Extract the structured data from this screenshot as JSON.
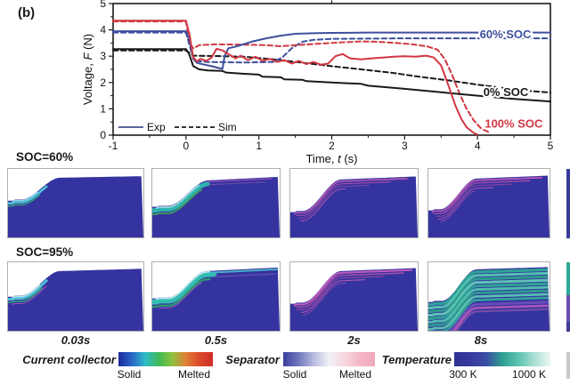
{
  "panel_label": "(b)",
  "chart_data": {
    "type": "line",
    "xlabel": {
      "pre": "Time, ",
      "it": "t",
      "post": " (s)"
    },
    "ylabel": {
      "pre": "Voltage, ",
      "it": "F",
      "post": " (N)"
    },
    "xlim": [
      -1,
      5
    ],
    "ylim": [
      0,
      5
    ],
    "xticks": [
      "-1",
      "0",
      "1",
      "2",
      "3",
      "4",
      "5"
    ],
    "yticks": [
      "0",
      "1",
      "2",
      "3",
      "4",
      "5"
    ],
    "legend": {
      "exp": "Exp",
      "sim": "Sim"
    },
    "annotations": [
      {
        "text": "60% SOC",
        "t": 4.03,
        "v": 3.82,
        "color": "#3d4f9d"
      },
      {
        "text": "0% SOC",
        "t": 4.08,
        "v": 1.62,
        "color": "#1a1a1a"
      },
      {
        "text": "100% SOC",
        "t": 4.1,
        "v": 0.42,
        "color": "#d23742"
      }
    ],
    "series": [
      {
        "name": "Sim 0% SOC",
        "color": "#1a1a1a",
        "dash": true,
        "points": [
          [
            -1,
            3.22
          ],
          [
            0,
            3.22
          ],
          [
            0.1,
            3.02
          ],
          [
            0.5,
            3.0
          ],
          [
            0.8,
            2.98
          ],
          [
            1.2,
            2.88
          ],
          [
            1.6,
            2.75
          ],
          [
            2.0,
            2.62
          ],
          [
            2.4,
            2.5
          ],
          [
            2.8,
            2.38
          ],
          [
            3.2,
            2.22
          ],
          [
            3.6,
            2.08
          ],
          [
            4.0,
            1.92
          ],
          [
            4.4,
            1.78
          ],
          [
            4.7,
            1.68
          ],
          [
            5,
            1.62
          ]
        ]
      },
      {
        "name": "Sim 60% SOC",
        "color": "#3d4f9d",
        "dash": true,
        "points": [
          [
            -1,
            3.9
          ],
          [
            0,
            3.9
          ],
          [
            0.07,
            3.2
          ],
          [
            0.12,
            2.82
          ],
          [
            0.3,
            2.78
          ],
          [
            0.8,
            2.76
          ],
          [
            1.2,
            2.78
          ],
          [
            1.32,
            2.95
          ],
          [
            1.45,
            3.3
          ],
          [
            1.6,
            3.55
          ],
          [
            1.75,
            3.62
          ],
          [
            2.0,
            3.66
          ],
          [
            3.0,
            3.68
          ],
          [
            5,
            3.68
          ]
        ]
      },
      {
        "name": "Sim 100% SOC",
        "color": "#d23742",
        "dash": true,
        "points": [
          [
            -1,
            4.32
          ],
          [
            0,
            4.32
          ],
          [
            0.05,
            3.5
          ],
          [
            0.1,
            3.3
          ],
          [
            0.18,
            3.42
          ],
          [
            0.4,
            3.45
          ],
          [
            0.8,
            3.44
          ],
          [
            1.1,
            3.42
          ],
          [
            1.3,
            3.38
          ],
          [
            1.5,
            3.42
          ],
          [
            1.8,
            3.47
          ],
          [
            2.1,
            3.52
          ],
          [
            2.4,
            3.56
          ],
          [
            2.6,
            3.55
          ],
          [
            2.9,
            3.5
          ],
          [
            3.1,
            3.45
          ],
          [
            3.3,
            3.38
          ],
          [
            3.45,
            3.25
          ],
          [
            3.55,
            2.9
          ],
          [
            3.65,
            2.3
          ],
          [
            3.75,
            1.6
          ],
          [
            3.85,
            1.0
          ],
          [
            3.95,
            0.55
          ],
          [
            4.05,
            0.25
          ],
          [
            4.15,
            0.12
          ]
        ]
      },
      {
        "name": "Exp 0% SOC",
        "color": "#1a1a1a",
        "dash": false,
        "points": [
          [
            -1,
            3.27
          ],
          [
            0,
            3.27
          ],
          [
            0.04,
            3.1
          ],
          [
            0.1,
            2.62
          ],
          [
            0.18,
            2.5
          ],
          [
            0.3,
            2.46
          ],
          [
            0.5,
            2.44
          ],
          [
            0.55,
            2.38
          ],
          [
            0.8,
            2.33
          ],
          [
            1.0,
            2.3
          ],
          [
            1.05,
            2.22
          ],
          [
            1.3,
            2.2
          ],
          [
            1.35,
            2.12
          ],
          [
            1.6,
            2.1
          ],
          [
            1.65,
            2.05
          ],
          [
            2.0,
            2.0
          ],
          [
            2.4,
            1.95
          ],
          [
            2.5,
            1.88
          ],
          [
            3.0,
            1.76
          ],
          [
            3.5,
            1.63
          ],
          [
            4.0,
            1.5
          ],
          [
            4.5,
            1.38
          ],
          [
            5,
            1.28
          ]
        ]
      },
      {
        "name": "Exp 60% SOC",
        "color": "#3d4f9d",
        "dash": false,
        "points": [
          [
            -1,
            3.95
          ],
          [
            0,
            3.95
          ],
          [
            0.05,
            3.6
          ],
          [
            0.1,
            2.9
          ],
          [
            0.15,
            2.75
          ],
          [
            0.25,
            2.68
          ],
          [
            0.35,
            2.62
          ],
          [
            0.45,
            2.55
          ],
          [
            0.5,
            2.52
          ],
          [
            0.53,
            3.0
          ],
          [
            0.58,
            3.3
          ],
          [
            0.7,
            3.38
          ],
          [
            0.9,
            3.55
          ],
          [
            1.1,
            3.68
          ],
          [
            1.3,
            3.78
          ],
          [
            1.5,
            3.85
          ],
          [
            1.8,
            3.88
          ],
          [
            2.5,
            3.9
          ],
          [
            5,
            3.9
          ]
        ]
      },
      {
        "name": "Exp 100% SOC",
        "color": "#d23742",
        "dash": false,
        "points": [
          [
            -1,
            4.35
          ],
          [
            0,
            4.35
          ],
          [
            0.05,
            3.8
          ],
          [
            0.1,
            2.95
          ],
          [
            0.15,
            2.8
          ],
          [
            0.2,
            2.9
          ],
          [
            0.28,
            2.82
          ],
          [
            0.35,
            2.95
          ],
          [
            0.42,
            3.28
          ],
          [
            0.5,
            3.22
          ],
          [
            0.6,
            3.05
          ],
          [
            0.68,
            2.92
          ],
          [
            0.75,
            3.02
          ],
          [
            0.85,
            2.85
          ],
          [
            0.95,
            2.98
          ],
          [
            1.05,
            2.82
          ],
          [
            1.15,
            2.9
          ],
          [
            1.25,
            2.78
          ],
          [
            1.35,
            2.85
          ],
          [
            1.45,
            2.72
          ],
          [
            1.55,
            2.82
          ],
          [
            1.65,
            2.7
          ],
          [
            1.75,
            2.78
          ],
          [
            1.85,
            2.68
          ],
          [
            1.95,
            2.72
          ],
          [
            2.05,
            3.0
          ],
          [
            2.15,
            3.08
          ],
          [
            2.25,
            2.92
          ],
          [
            2.4,
            2.88
          ],
          [
            2.55,
            2.92
          ],
          [
            2.7,
            2.95
          ],
          [
            2.85,
            2.98
          ],
          [
            3.0,
            3.0
          ],
          [
            3.15,
            2.98
          ],
          [
            3.3,
            3.02
          ],
          [
            3.4,
            2.95
          ],
          [
            3.5,
            2.65
          ],
          [
            3.6,
            1.9
          ],
          [
            3.7,
            1.1
          ],
          [
            3.78,
            0.6
          ],
          [
            3.85,
            0.3
          ],
          [
            3.95,
            0.08
          ],
          [
            4.0,
            0.02
          ]
        ]
      }
    ]
  },
  "panels": {
    "rows": [
      {
        "label": "SOC=60%",
        "tiles": [
          {
            "variant": "cyan-small"
          },
          {
            "variant": "cyan-strong"
          },
          {
            "variant": "magenta"
          },
          {
            "variant": "magenta-more"
          }
        ]
      },
      {
        "label": "SOC=95%",
        "tiles": [
          {
            "variant": "cyan-small-2"
          },
          {
            "variant": "cyan-strong-2"
          },
          {
            "variant": "magenta-strong"
          },
          {
            "variant": "teal-layers"
          }
        ]
      }
    ],
    "time_labels": [
      "0.03s",
      "0.5s",
      "2s",
      "8s"
    ]
  },
  "legend_bars": [
    {
      "title": "Current collector",
      "left": "Solid",
      "right": "Melted",
      "stops": [
        "#202a9c",
        "#2a65c8",
        "#2fbcc8",
        "#40b954",
        "#8ec23f",
        "#e08038",
        "#da4a2c",
        "#d02c26"
      ]
    },
    {
      "title": "Separator",
      "left": "Solid",
      "right": "Melted",
      "stops": [
        "#3a3f9e",
        "#7077bd",
        "#b8bcdf",
        "#f2f1f7",
        "#f7d7de",
        "#f4b8c6",
        "#f0a6ba"
      ]
    },
    {
      "title": "Temperature",
      "left": "300 K",
      "right": "1000 K",
      "stops": [
        "#2e3292",
        "#373a9c",
        "#3a4da5",
        "#2f9f92",
        "#5cc2b0",
        "#aadfd4",
        "#ebf7f4"
      ]
    }
  ]
}
